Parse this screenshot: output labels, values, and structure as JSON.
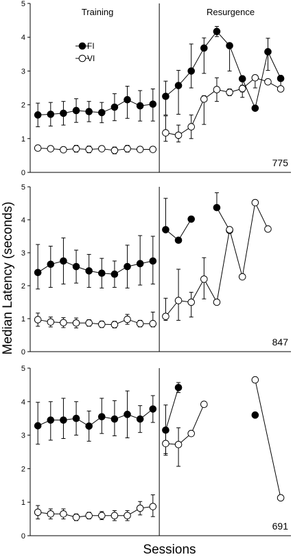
{
  "ylabel": "Median Latency (seconds)",
  "xlabel": "Sessions",
  "chart_data": [
    {
      "type": "scatter",
      "subject": "775",
      "phase_labels": [
        "Training",
        "Resurgence"
      ],
      "legend": [
        "FI",
        "VI"
      ],
      "legend_position": "top-left",
      "ylim": [
        0,
        5
      ],
      "yticks": [
        "0",
        "1",
        "2",
        "3",
        "4",
        "5"
      ],
      "sessions": 20,
      "phase_boundary": 10.5,
      "series": [
        {
          "name": "FI",
          "marker": "filled-circle",
          "x": [
            1,
            2,
            3,
            4,
            5,
            6,
            7,
            8,
            9,
            10,
            11,
            12,
            13,
            14,
            15,
            16,
            17,
            18,
            19,
            20
          ],
          "y": [
            1.7,
            1.72,
            1.75,
            1.83,
            1.8,
            1.77,
            1.93,
            2.15,
            1.97,
            2.02,
            2.25,
            2.57,
            3.0,
            3.68,
            4.17,
            3.75,
            2.77,
            1.9,
            3.57,
            2.78
          ],
          "err_lo": [
            0.35,
            0.35,
            0.35,
            0.35,
            0.3,
            0.3,
            0.4,
            0.55,
            0.45,
            0.5,
            0.55,
            0.85,
            0.5,
            0.75,
            0.15,
            0.75,
            0.55,
            0.0,
            0.55,
            0.25
          ],
          "err_hi": [
            0.35,
            0.35,
            0.35,
            0.35,
            0.3,
            0.3,
            0.4,
            0.4,
            0.45,
            0.45,
            0.45,
            0.45,
            0.8,
            0.3,
            0.15,
            0.0,
            0.0,
            0.0,
            0.4,
            0.0
          ]
        },
        {
          "name": "VI",
          "marker": "open-circle",
          "x": [
            1,
            2,
            3,
            4,
            5,
            6,
            7,
            8,
            9,
            10,
            11,
            12,
            13,
            14,
            15,
            16,
            17,
            18,
            19,
            20
          ],
          "y": [
            0.72,
            0.7,
            0.67,
            0.7,
            0.68,
            0.7,
            0.65,
            0.7,
            0.68,
            0.68,
            1.17,
            1.1,
            1.35,
            2.17,
            2.45,
            2.37,
            2.48,
            2.8,
            2.68,
            2.47
          ],
          "err_lo": [
            0.08,
            0.08,
            0.08,
            0.1,
            0.1,
            0.05,
            0.1,
            0.1,
            0.05,
            0.05,
            0.25,
            0.2,
            0.35,
            0.75,
            0.35,
            0.1,
            0.1,
            0.3,
            0.0,
            0.0
          ],
          "err_hi": [
            0.08,
            0.08,
            0.08,
            0.1,
            0.1,
            0.05,
            0.1,
            0.1,
            0.05,
            0.05,
            0.5,
            0.3,
            0.35,
            0.1,
            0.35,
            0.1,
            0.1,
            0.0,
            0.0,
            0.0
          ]
        }
      ]
    },
    {
      "type": "scatter",
      "subject": "847",
      "ylim": [
        0,
        5
      ],
      "yticks": [
        "0",
        "1",
        "2",
        "3",
        "4",
        "5"
      ],
      "sessions": 20,
      "phase_boundary": 10.5,
      "series": [
        {
          "name": "FI",
          "marker": "filled-circle",
          "x": [
            1,
            2,
            3,
            4,
            5,
            6,
            7,
            8,
            9,
            10,
            11,
            12,
            13,
            15,
            16
          ],
          "y": [
            2.4,
            2.65,
            2.75,
            2.58,
            2.45,
            2.38,
            2.35,
            2.58,
            2.67,
            2.75,
            3.7,
            3.38,
            4.02,
            4.37,
            3.68
          ],
          "err_lo": [
            0.5,
            0.7,
            0.7,
            0.5,
            0.5,
            0.45,
            0.4,
            0.65,
            0.65,
            0.7,
            0.0,
            0.0,
            0.0,
            0.0,
            0.0
          ],
          "err_hi": [
            0.85,
            0.55,
            0.7,
            0.5,
            0.5,
            0.45,
            0.4,
            0.65,
            0.85,
            0.75,
            0.95,
            0.0,
            0.0,
            0.45,
            0.0
          ],
          "connect_breaks_after": [
            10,
            13
          ]
        },
        {
          "name": "VI",
          "marker": "open-circle",
          "x": [
            1,
            2,
            3,
            4,
            5,
            6,
            7,
            8,
            9,
            10,
            11,
            12,
            13,
            14,
            15,
            16,
            17,
            18,
            19
          ],
          "y": [
            0.97,
            0.9,
            0.88,
            0.87,
            0.87,
            0.83,
            0.82,
            0.98,
            0.85,
            0.85,
            1.07,
            1.55,
            1.5,
            2.2,
            1.5,
            3.7,
            2.27,
            4.52,
            3.72
          ],
          "err_lo": [
            0.2,
            0.15,
            0.15,
            0.15,
            0.1,
            0.1,
            0.1,
            0.15,
            0.1,
            0.1,
            0.12,
            0.6,
            0.45,
            0.6,
            0.0,
            0.0,
            0.0,
            0.0,
            0.0
          ],
          "err_hi": [
            0.2,
            0.15,
            0.15,
            0.15,
            0.1,
            0.1,
            0.1,
            0.15,
            0.1,
            0.35,
            0.55,
            0.95,
            0.3,
            0.65,
            0.0,
            0.0,
            0.0,
            0.0,
            0.0
          ]
        }
      ]
    },
    {
      "type": "scatter",
      "subject": "691",
      "ylim": [
        0,
        5
      ],
      "yticks": [
        "0",
        "1",
        "2",
        "3",
        "4",
        "5"
      ],
      "sessions": 20,
      "phase_boundary": 10.5,
      "series": [
        {
          "name": "FI",
          "marker": "filled-circle",
          "x": [
            1,
            2,
            3,
            4,
            5,
            6,
            7,
            8,
            9,
            10,
            11,
            12,
            18
          ],
          "y": [
            3.28,
            3.45,
            3.45,
            3.5,
            3.27,
            3.55,
            3.48,
            3.62,
            3.48,
            3.78,
            3.15,
            4.42,
            3.6
          ],
          "err_lo": [
            0.55,
            0.6,
            0.55,
            0.5,
            0.45,
            0.5,
            0.5,
            0.7,
            0.4,
            0.4,
            0.75,
            0.15,
            0.0
          ],
          "err_hi": [
            0.7,
            0.55,
            0.65,
            0.5,
            0.45,
            0.55,
            0.55,
            0.7,
            0.4,
            0.4,
            0.75,
            0.15,
            0.0
          ],
          "connect_breaks_after": [
            10,
            12
          ]
        },
        {
          "name": "VI",
          "marker": "open-circle",
          "x": [
            1,
            2,
            3,
            4,
            5,
            6,
            7,
            8,
            9,
            10,
            11,
            12,
            13,
            14,
            18,
            20
          ],
          "y": [
            0.7,
            0.65,
            0.65,
            0.55,
            0.6,
            0.6,
            0.6,
            0.6,
            0.82,
            0.87,
            2.75,
            2.72,
            3.05,
            3.92,
            4.65,
            1.13
          ],
          "err_lo": [
            0.2,
            0.15,
            0.15,
            0.1,
            0.1,
            0.12,
            0.15,
            0.15,
            0.2,
            0.3,
            0.3,
            0.65,
            0.0,
            0.0,
            0.0,
            0.0
          ],
          "err_hi": [
            0.2,
            0.15,
            0.15,
            0.1,
            0.1,
            0.12,
            0.15,
            0.15,
            0.2,
            0.35,
            0.45,
            0.5,
            0.0,
            0.0,
            0.0,
            0.0
          ],
          "connect_breaks_after": [
            10,
            14
          ]
        }
      ]
    }
  ]
}
